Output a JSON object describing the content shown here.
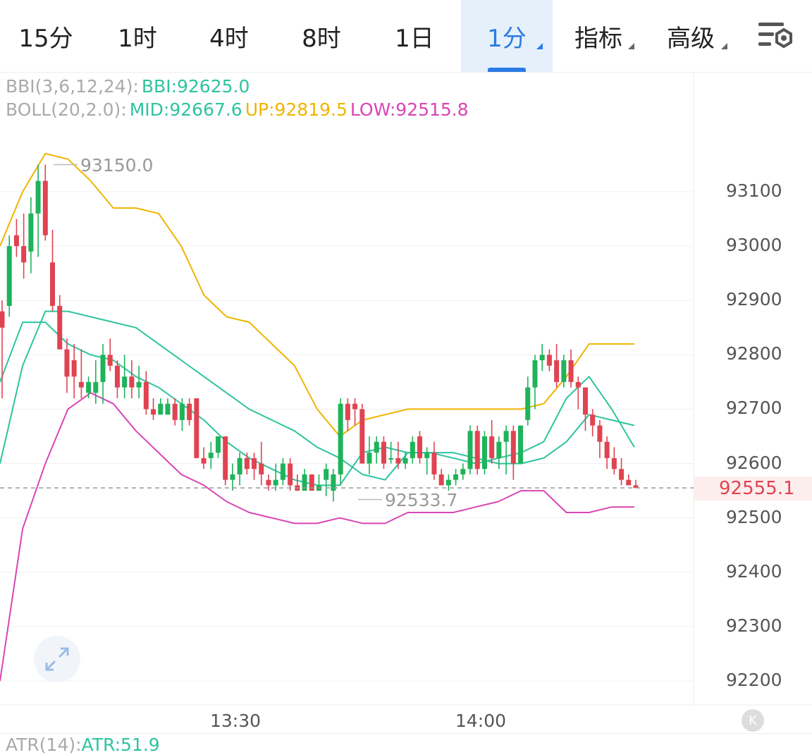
{
  "tabs": [
    {
      "label": "15分"
    },
    {
      "label": "1时"
    },
    {
      "label": "4时"
    },
    {
      "label": "8时"
    },
    {
      "label": "1日"
    },
    {
      "label": "1分",
      "active": true,
      "has_dropdown": true
    },
    {
      "label": "指标",
      "has_dropdown": true
    },
    {
      "label": "高级",
      "has_dropdown": true
    }
  ],
  "settings_icon": "chart-settings-icon",
  "legends": {
    "bbi": {
      "name": "BBI(3,6,12,24):",
      "value": "BBI:92625.0"
    },
    "boll": {
      "name": "BOLL(20,2.0):",
      "mid": "MID:92667.6",
      "up": "UP:92819.5",
      "low": "LOW:92515.8"
    },
    "atr": {
      "name": "ATR(14):",
      "value": "ATR:51.9"
    }
  },
  "colors": {
    "up_candle": "#1fb35a",
    "down_candle": "#e04351",
    "boll_up": "#f0b400",
    "boll_mid": "#2ec4a0",
    "boll_low": "#d945b4",
    "bbi": "#2ec4a0",
    "active_tab": "#2b7be4"
  },
  "price_axis": {
    "labels": [
      "93100",
      "93000",
      "92900",
      "92800",
      "92700",
      "92600",
      "92500",
      "92400",
      "92300",
      "92200"
    ],
    "last_price": "92555.1"
  },
  "time_axis": {
    "labels": [
      "13:30",
      "14:00"
    ]
  },
  "annotations": {
    "high": "93150.0",
    "low": "92533.7"
  },
  "chart_data": {
    "type": "candlestick",
    "ylim": [
      92160,
      93210
    ],
    "last_price": 92555.1,
    "highest": 93150.0,
    "lowest": 92533.7,
    "candles": [
      [
        92880,
        92900,
        92720,
        92850
      ],
      [
        92890,
        93020,
        92870,
        93000
      ],
      [
        93020,
        93050,
        92980,
        93000
      ],
      [
        93000,
        93060,
        92940,
        92970
      ],
      [
        92990,
        93090,
        92950,
        93060
      ],
      [
        93060,
        93150,
        92980,
        93120
      ],
      [
        93120,
        93150,
        93010,
        93020
      ],
      [
        92970,
        93030,
        92880,
        92890
      ],
      [
        92890,
        92910,
        92810,
        92810
      ],
      [
        92810,
        92830,
        92730,
        92760
      ],
      [
        92790,
        92820,
        92720,
        92760
      ],
      [
        92750,
        92810,
        92720,
        92740
      ],
      [
        92730,
        92760,
        92720,
        92750
      ],
      [
        92730,
        92790,
        92710,
        92750
      ],
      [
        92750,
        92820,
        92710,
        92800
      ],
      [
        92800,
        92830,
        92770,
        92780
      ],
      [
        92780,
        92790,
        92720,
        92740
      ],
      [
        92740,
        92800,
        92720,
        92760
      ],
      [
        92760,
        92790,
        92720,
        92740
      ],
      [
        92740,
        92780,
        92720,
        92750
      ],
      [
        92750,
        92770,
        92690,
        92700
      ],
      [
        92700,
        92720,
        92680,
        92690
      ],
      [
        92690,
        92720,
        92690,
        92710
      ],
      [
        92690,
        92720,
        92690,
        92710
      ],
      [
        92710,
        92720,
        92670,
        92680
      ],
      [
        92680,
        92720,
        92660,
        92710
      ],
      [
        92710,
        92720,
        92670,
        92680
      ],
      [
        92720,
        92720,
        92610,
        92610
      ],
      [
        92610,
        92630,
        92590,
        92600
      ],
      [
        92610,
        92640,
        92590,
        92620
      ],
      [
        92620,
        92650,
        92610,
        92650
      ],
      [
        92650,
        92650,
        92560,
        92570
      ],
      [
        92570,
        92600,
        92550,
        92580
      ],
      [
        92580,
        92620,
        92560,
        92610
      ],
      [
        92610,
        92620,
        92580,
        92590
      ],
      [
        92610,
        92620,
        92570,
        92590
      ],
      [
        92600,
        92640,
        92560,
        92580
      ],
      [
        92570,
        92580,
        92550,
        92560
      ],
      [
        92560,
        92600,
        92550,
        92570
      ],
      [
        92570,
        92610,
        92560,
        92600
      ],
      [
        92600,
        92610,
        92550,
        92560
      ],
      [
        92560,
        92580,
        92550,
        92550
      ],
      [
        92550,
        92590,
        92550,
        92580
      ],
      [
        92580,
        92580,
        92550,
        92550
      ],
      [
        92550,
        92580,
        92550,
        92560
      ],
      [
        92570,
        92600,
        92540,
        92590
      ],
      [
        92550,
        92590,
        92530,
        92580
      ],
      [
        92580,
        92720,
        92560,
        92710
      ],
      [
        92710,
        92720,
        92660,
        92680
      ],
      [
        92710,
        92720,
        92670,
        92700
      ],
      [
        92700,
        92710,
        92600,
        92600
      ],
      [
        92600,
        92650,
        92580,
        92620
      ],
      [
        92620,
        92650,
        92600,
        92640
      ],
      [
        92640,
        92650,
        92590,
        92600
      ],
      [
        92610,
        92640,
        92600,
        92610
      ],
      [
        92610,
        92640,
        92590,
        92600
      ],
      [
        92600,
        92620,
        92590,
        92610
      ],
      [
        92610,
        92650,
        92600,
        92640
      ],
      [
        92650,
        92660,
        92600,
        92610
      ],
      [
        92610,
        92630,
        92580,
        92620
      ],
      [
        92620,
        92640,
        92570,
        92580
      ],
      [
        92580,
        92590,
        92560,
        92560
      ],
      [
        92560,
        92580,
        92550,
        92570
      ],
      [
        92570,
        92590,
        92560,
        92580
      ],
      [
        92580,
        92600,
        92570,
        92590
      ],
      [
        92590,
        92670,
        92580,
        92660
      ],
      [
        92660,
        92670,
        92580,
        92590
      ],
      [
        92590,
        92660,
        92580,
        92650
      ],
      [
        92650,
        92680,
        92600,
        92610
      ],
      [
        92610,
        92650,
        92590,
        92640
      ],
      [
        92640,
        92670,
        92580,
        92660
      ],
      [
        92660,
        92670,
        92570,
        92600
      ],
      [
        92600,
        92660,
        92600,
        92670
      ],
      [
        92680,
        92760,
        92670,
        92740
      ],
      [
        92740,
        92800,
        92700,
        92790
      ],
      [
        92790,
        92820,
        92770,
        92800
      ],
      [
        92800,
        92810,
        92770,
        92780
      ],
      [
        92790,
        92820,
        92740,
        92750
      ],
      [
        92750,
        92800,
        92740,
        92790
      ],
      [
        92790,
        92810,
        92740,
        92750
      ],
      [
        92750,
        92760,
        92700,
        92740
      ],
      [
        92740,
        92740,
        92660,
        92690
      ],
      [
        92690,
        92700,
        92650,
        92670
      ],
      [
        92670,
        92680,
        92610,
        92640
      ],
      [
        92640,
        92650,
        92590,
        92610
      ],
      [
        92610,
        92630,
        92580,
        92590
      ],
      [
        92590,
        92610,
        92560,
        92570
      ],
      [
        92570,
        92580,
        92560,
        92560
      ],
      [
        92560,
        92570,
        92555,
        92555
      ]
    ],
    "boll_up": [
      93000,
      93100,
      93170,
      93160,
      93120,
      93070,
      93070,
      93060,
      93000,
      92910,
      92870,
      92860,
      92820,
      92780,
      92700,
      92650,
      92680,
      92690,
      92700,
      92700,
      92700,
      92700,
      92700,
      92700,
      92710,
      92760,
      92820,
      92820,
      92820
    ],
    "boll_mid": [
      92600,
      92780,
      92880,
      92880,
      92870,
      92860,
      92850,
      92820,
      92790,
      92760,
      92730,
      92700,
      92680,
      92660,
      92630,
      92610,
      92580,
      92570,
      92620,
      92620,
      92620,
      92610,
      92600,
      92600,
      92610,
      92640,
      92690,
      92680,
      92670
    ],
    "boll_low": [
      92200,
      92480,
      92600,
      92700,
      92730,
      92710,
      92660,
      92620,
      92580,
      92560,
      92530,
      92510,
      92500,
      92490,
      92490,
      92500,
      92490,
      92490,
      92510,
      92510,
      92510,
      92520,
      92530,
      92550,
      92550,
      92510,
      92510,
      92520,
      92520
    ],
    "bbi": [
      92750,
      92860,
      92860,
      92820,
      92800,
      92790,
      92760,
      92740,
      92710,
      92680,
      92640,
      92610,
      92590,
      92570,
      92560,
      92560,
      92620,
      92630,
      92620,
      92620,
      92610,
      92600,
      92610,
      92620,
      92640,
      92720,
      92760,
      92700,
      92630
    ]
  },
  "buttons": {
    "expand_icon": "expand-arrows-icon",
    "scroll_left_label": "K"
  }
}
